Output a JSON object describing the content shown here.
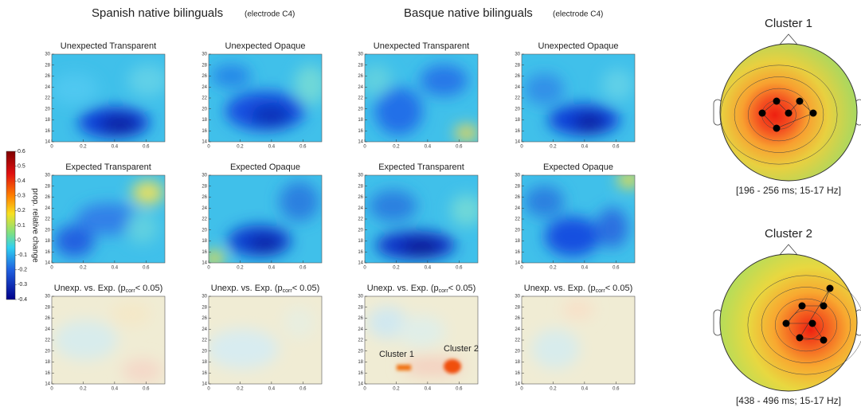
{
  "header": {
    "spanish": "Spanish native bilinguals",
    "basque": "Basque native bilinguals",
    "electrode": "(electrode C4)"
  },
  "panels": [
    [
      "Unexpected Transparent",
      "Unexpected Opaque",
      "Unexpected Transparent",
      "Unexpected Opaque"
    ],
    [
      "Expected Transparent",
      "Expected Opaque",
      "Expected Transparent",
      "Expected Opaque"
    ]
  ],
  "contrast_title": {
    "before": "Unexp. vs. Exp. (p",
    "sub": "corr",
    "after": "< 0.05)"
  },
  "panel_yticks": [
    14,
    16,
    18,
    20,
    22,
    24,
    26,
    28,
    30
  ],
  "panel_xticks": [
    0,
    0.2,
    0.4,
    0.6
  ],
  "colorbar": {
    "label": "prop. relative change",
    "ticks": [
      0.6,
      0.5,
      0.4,
      0.3,
      0.2,
      0.1,
      0,
      -0.1,
      -0.2,
      -0.3,
      -0.4
    ]
  },
  "inset_labels": [
    "Cluster 1",
    "Cluster 2"
  ],
  "clusters": [
    {
      "title": "Cluster 1",
      "caption": "[196 - 256 ms; 15-17 Hz]"
    },
    {
      "title": "Cluster 2",
      "caption": "[438 - 496 ms; 15-17 Hz]"
    }
  ]
}
